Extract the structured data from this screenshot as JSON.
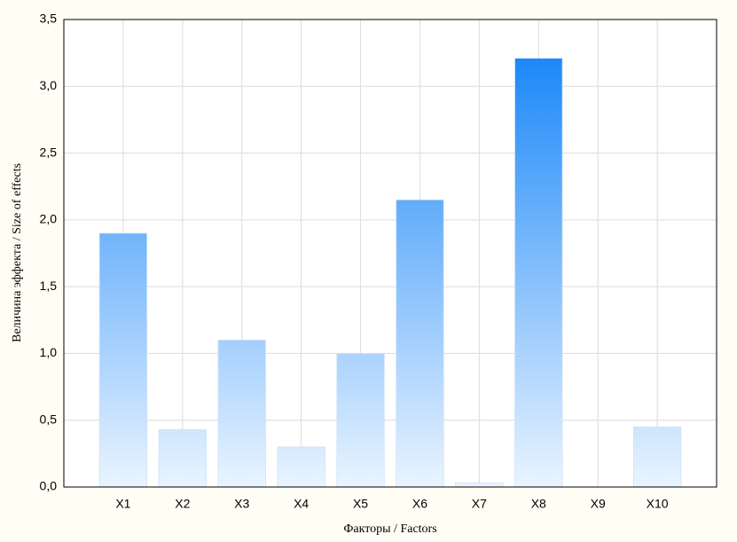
{
  "chart_data": {
    "type": "bar",
    "x_label": "Факторы / Factors",
    "y_label": "Величина эффекта / Size of effects",
    "categories": [
      "X1",
      "X2",
      "X3",
      "X4",
      "X5",
      "X6",
      "X7",
      "X8",
      "X9",
      "X10"
    ],
    "values": [
      1.9,
      0.43,
      1.1,
      0.3,
      1.0,
      2.15,
      0.03,
      3.21,
      0,
      0.45
    ],
    "gradient": [
      "#eaf4ff",
      "#1a87f8"
    ],
    "ylim": [
      0,
      3.5
    ],
    "yticks": [
      {
        "value": 0,
        "label": "0,0"
      },
      {
        "value": 0.5,
        "label": "0,5"
      },
      {
        "value": 1,
        "label": "1,0"
      },
      {
        "value": 1.5,
        "label": "1,5"
      },
      {
        "value": 2,
        "label": "2,0"
      },
      {
        "value": 2.5,
        "label": "2,5"
      },
      {
        "value": 3,
        "label": "3,0"
      },
      {
        "value": 3.5,
        "label": "3,5"
      }
    ],
    "grid": true
  }
}
